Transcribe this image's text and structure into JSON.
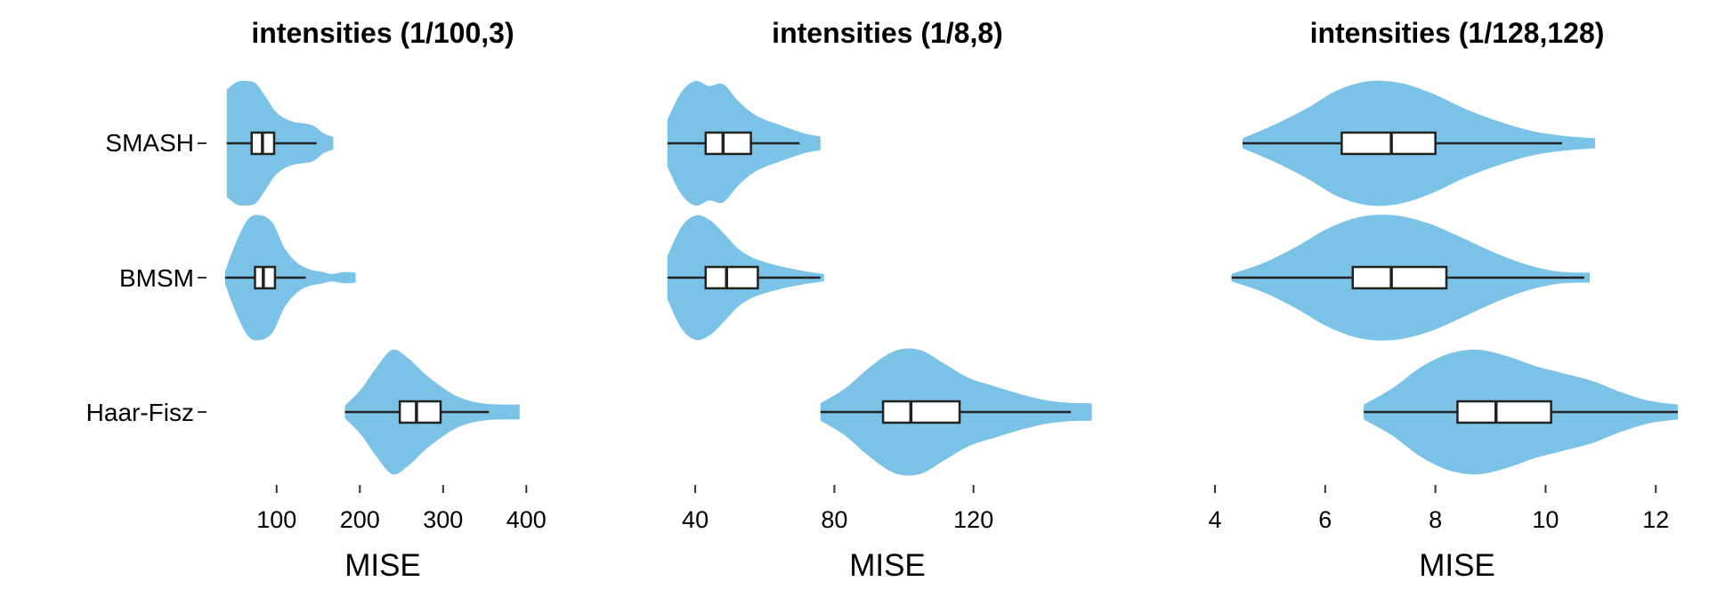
{
  "chart_data": [
    {
      "type": "violin",
      "title": "intensities (1/100,3)",
      "xlabel": "MISE",
      "xlim": [
        35,
        420
      ],
      "xticks": [
        100,
        200,
        300,
        400
      ],
      "categories": [
        "SMASH",
        "BMSM",
        "Haar-Fisz"
      ],
      "series": [
        {
          "category": "SMASH",
          "violin_range": [
            40,
            168
          ],
          "whiskers": [
            40,
            148
          ],
          "q1": 70,
          "median": 83,
          "q3": 97,
          "profile": [
            0.86,
            0.98,
            1.0,
            0.96,
            0.75,
            0.52,
            0.4,
            0.34,
            0.32,
            0.28,
            0.16,
            0.1
          ]
        },
        {
          "category": "BMSM",
          "violin_range": [
            38,
            195
          ],
          "whiskers": [
            38,
            135
          ],
          "q1": 74,
          "median": 84,
          "q3": 98,
          "profile": [
            0.1,
            0.6,
            0.95,
            1.0,
            0.88,
            0.48,
            0.25,
            0.14,
            0.1,
            0.06,
            0.09,
            0.08
          ]
        },
        {
          "category": "Haar-Fisz",
          "violin_range": [
            182,
            392
          ],
          "whiskers": [
            182,
            355
          ],
          "q1": 248,
          "median": 268,
          "q3": 297,
          "profile": [
            0.1,
            0.36,
            0.72,
            1.0,
            0.86,
            0.62,
            0.42,
            0.26,
            0.17,
            0.13,
            0.12,
            0.12
          ]
        }
      ]
    },
    {
      "type": "violin",
      "title": "intensities (1/8,8)",
      "xlabel": "MISE",
      "xlim": [
        30,
        160
      ],
      "xticks": [
        40,
        80,
        120
      ],
      "categories": [
        "SMASH",
        "BMSM",
        "Haar-Fisz"
      ],
      "series": [
        {
          "category": "SMASH",
          "violin_range": [
            32,
            76
          ],
          "whiskers": [
            32,
            70
          ],
          "q1": 43,
          "median": 48,
          "q3": 56,
          "profile": [
            0.38,
            0.82,
            1.0,
            0.92,
            0.95,
            0.7,
            0.5,
            0.38,
            0.3,
            0.22,
            0.15,
            0.11
          ]
        },
        {
          "category": "BMSM",
          "violin_range": [
            32,
            77
          ],
          "whiskers": [
            32,
            76
          ],
          "q1": 43,
          "median": 49,
          "q3": 58,
          "profile": [
            0.35,
            0.82,
            1.0,
            0.92,
            0.7,
            0.46,
            0.32,
            0.24,
            0.18,
            0.13,
            0.09,
            0.06
          ]
        },
        {
          "category": "Haar-Fisz",
          "violin_range": [
            76,
            154
          ],
          "whiskers": [
            76,
            148
          ],
          "q1": 94,
          "median": 102,
          "q3": 116,
          "profile": [
            0.14,
            0.38,
            0.72,
            0.98,
            1.0,
            0.78,
            0.55,
            0.42,
            0.3,
            0.2,
            0.15,
            0.14
          ]
        }
      ]
    },
    {
      "type": "violin",
      "title": "intensities (1/128,128)",
      "xlabel": "MISE",
      "xlim": [
        4,
        12.4
      ],
      "xticks": [
        4,
        6,
        8,
        10,
        12
      ],
      "categories": [
        "SMASH",
        "BMSM",
        "Haar-Fisz"
      ],
      "series": [
        {
          "category": "SMASH",
          "violin_range": [
            4.5,
            10.9
          ],
          "whiskers": [
            4.5,
            10.3
          ],
          "q1": 6.3,
          "median": 7.2,
          "q3": 8.0,
          "profile": [
            0.08,
            0.3,
            0.56,
            0.86,
            1.0,
            0.96,
            0.78,
            0.54,
            0.35,
            0.2,
            0.12,
            0.08
          ]
        },
        {
          "category": "BMSM",
          "violin_range": [
            4.3,
            10.8
          ],
          "whiskers": [
            4.3,
            10.7
          ],
          "q1": 6.5,
          "median": 7.2,
          "q3": 8.2,
          "profile": [
            0.06,
            0.24,
            0.5,
            0.8,
            0.98,
            1.0,
            0.88,
            0.66,
            0.42,
            0.22,
            0.1,
            0.08
          ]
        },
        {
          "category": "Haar-Fisz",
          "violin_range": [
            6.7,
            12.4
          ],
          "whiskers": [
            6.7,
            12.4
          ],
          "q1": 8.4,
          "median": 9.1,
          "q3": 10.1,
          "profile": [
            0.12,
            0.38,
            0.72,
            0.94,
            1.0,
            0.9,
            0.74,
            0.62,
            0.5,
            0.32,
            0.18,
            0.12
          ]
        }
      ]
    }
  ],
  "colors": {
    "violin_fill": "#7BC3E6",
    "box_fill": "#ffffff",
    "line": "#222222"
  }
}
